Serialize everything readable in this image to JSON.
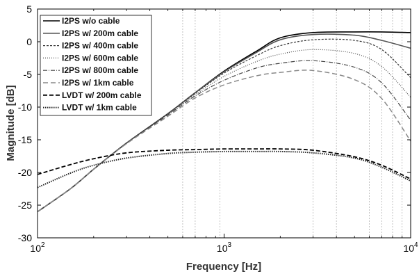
{
  "chart_data": {
    "type": "line",
    "xlabel": "Frequency [Hz]",
    "ylabel": "Magnitude [dB]",
    "xscale": "log",
    "xlim": [
      100,
      10000
    ],
    "ylim": [
      -30,
      5
    ],
    "grid": "dotted vertical lines at marked frequencies",
    "legend_placement": "top-left",
    "x_ticks": [
      {
        "value": 100,
        "base": "10",
        "exp": "2"
      },
      {
        "value": 1000,
        "base": "10",
        "exp": "3"
      },
      {
        "value": 10000,
        "base": "10",
        "exp": "4"
      }
    ],
    "y_ticks": [
      5,
      0,
      -5,
      -10,
      -15,
      -20,
      -25,
      -30
    ],
    "vertical_lines": [
      600,
      700,
      950,
      3000,
      4000,
      6000,
      7000,
      8000,
      9000
    ],
    "series": [
      {
        "name": "I2PS w/o cable",
        "style": "solid",
        "color": "#000000",
        "x": [
          100,
          150,
          200,
          300,
          500,
          700,
          1000,
          1500,
          2000,
          3000,
          5000,
          7000,
          10000
        ],
        "y": [
          -26.0,
          -22.5,
          -19.5,
          -15.5,
          -11.0,
          -7.8,
          -4.5,
          -1.4,
          0.6,
          1.4,
          1.5,
          1.5,
          1.4
        ]
      },
      {
        "name": "I2PS w/ 200m cable",
        "style": "solid",
        "color": "#555555",
        "x": [
          100,
          150,
          200,
          300,
          500,
          700,
          1000,
          1500,
          2000,
          3000,
          5000,
          7000,
          10000
        ],
        "y": [
          -26.0,
          -22.5,
          -19.5,
          -15.5,
          -11.0,
          -7.8,
          -4.6,
          -1.6,
          0.3,
          1.1,
          1.0,
          0.2,
          -1.0
        ]
      },
      {
        "name": "I2PS w/ 400m cable",
        "style": "dashed-fine",
        "color": "#333333",
        "x": [
          100,
          150,
          200,
          300,
          500,
          700,
          1000,
          1500,
          2000,
          3000,
          5000,
          7000,
          10000
        ],
        "y": [
          -26.0,
          -22.5,
          -19.5,
          -15.5,
          -11.0,
          -7.9,
          -4.8,
          -2.1,
          -0.6,
          0.3,
          0.2,
          -1.2,
          -5.5
        ]
      },
      {
        "name": "I2PS w/ 600m cable",
        "style": "dotted",
        "color": "#444444",
        "x": [
          100,
          150,
          200,
          300,
          500,
          700,
          1000,
          1500,
          2000,
          3000,
          5000,
          7000,
          10000
        ],
        "y": [
          -26.0,
          -22.5,
          -19.5,
          -15.5,
          -11.1,
          -8.1,
          -5.3,
          -3.0,
          -1.9,
          -1.2,
          -1.8,
          -3.8,
          -8.5
        ]
      },
      {
        "name": "I2PS w/ 800m cable",
        "style": "dashdot",
        "color": "#444444",
        "x": [
          100,
          150,
          200,
          300,
          500,
          700,
          1000,
          1500,
          2000,
          3000,
          5000,
          7000,
          10000
        ],
        "y": [
          -26.0,
          -22.5,
          -19.5,
          -15.5,
          -11.2,
          -8.3,
          -5.9,
          -4.0,
          -3.3,
          -2.9,
          -3.9,
          -6.3,
          -12.0
        ]
      },
      {
        "name": "I2PS w/ 1km cable",
        "style": "dashed-long",
        "color": "#888888",
        "x": [
          100,
          150,
          200,
          300,
          500,
          700,
          1000,
          1500,
          2000,
          3000,
          5000,
          7000,
          10000
        ],
        "y": [
          -26.0,
          -22.5,
          -19.5,
          -15.6,
          -11.4,
          -8.6,
          -6.6,
          -5.2,
          -4.7,
          -4.4,
          -5.8,
          -8.7,
          -15.2
        ]
      },
      {
        "name": "LVDT w/ 200m cable",
        "style": "dashed-heavy",
        "color": "#000000",
        "x": [
          100,
          150,
          200,
          300,
          500,
          700,
          1000,
          1500,
          2000,
          3000,
          5000,
          7000,
          10000
        ],
        "y": [
          -20.3,
          -18.8,
          -17.9,
          -17.0,
          -16.6,
          -16.5,
          -16.4,
          -16.4,
          -16.4,
          -16.6,
          -17.6,
          -18.9,
          -21.0
        ]
      },
      {
        "name": "LVDT w/ 1km cable",
        "style": "dotted-heavy",
        "color": "#222222",
        "x": [
          100,
          150,
          200,
          300,
          500,
          700,
          1000,
          1500,
          2000,
          3000,
          5000,
          7000,
          10000
        ],
        "y": [
          -22.3,
          -20.1,
          -18.9,
          -17.8,
          -17.1,
          -16.9,
          -16.8,
          -16.8,
          -16.8,
          -17.0,
          -17.8,
          -19.2,
          -21.3
        ]
      }
    ]
  }
}
